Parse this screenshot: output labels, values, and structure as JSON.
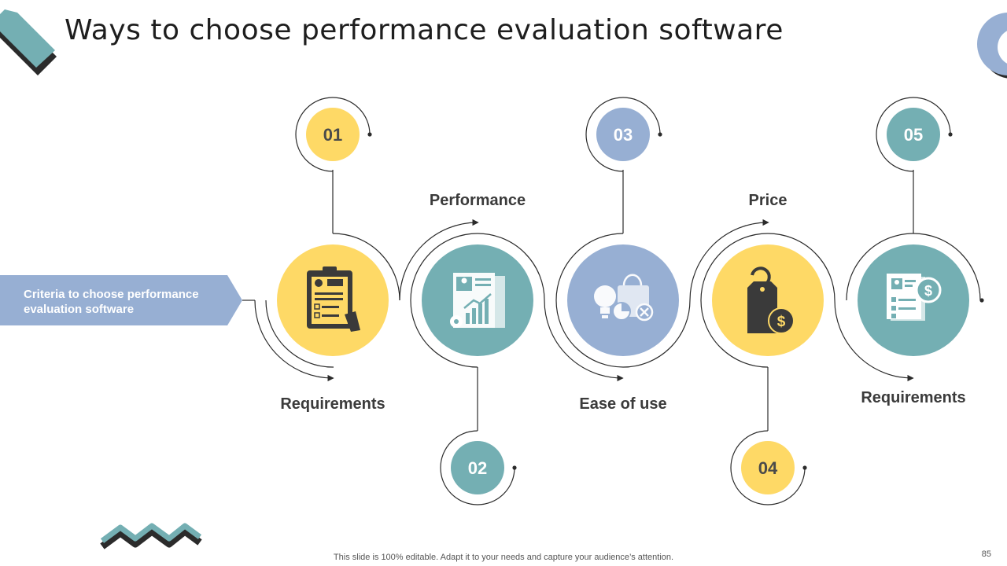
{
  "title": "Ways to choose performance evaluation software",
  "criteria": {
    "line1": "Criteria to choose performance",
    "line2": "evaluation software"
  },
  "steps": [
    {
      "number": "01",
      "label": "Requirements",
      "icon": "clipboard-checklist-icon"
    },
    {
      "number": "02",
      "label": "Performance",
      "icon": "growth-report-icon"
    },
    {
      "number": "03",
      "label": "Ease of use",
      "icon": "lightbulb-shopping-bag-icon"
    },
    {
      "number": "04",
      "label": "Price",
      "icon": "price-tag-dollar-icon"
    },
    {
      "number": "05",
      "label": "Requirements",
      "icon": "invoice-dollar-icon"
    }
  ],
  "footer": "This slide is 100% editable. Adapt it to your needs and capture your audience’s attention.",
  "page_number": "85",
  "colors": {
    "yellow": "#FED966",
    "teal": "#74AFB3",
    "blue": "#97AFD3",
    "dark": "#3A3A3A",
    "line": "#2B2B2B"
  }
}
